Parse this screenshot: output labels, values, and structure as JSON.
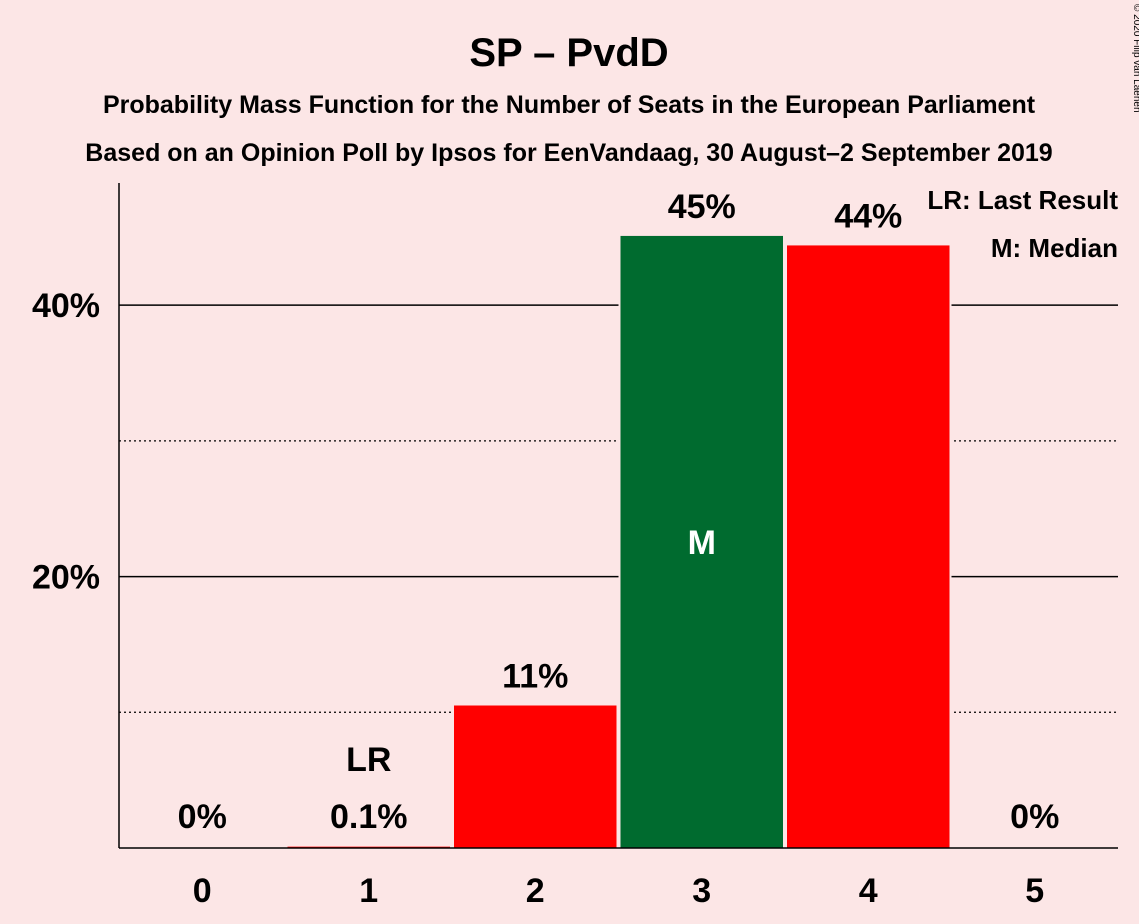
{
  "chart_data": {
    "type": "bar",
    "title": "SP – PvdD",
    "subtitle_lines": [
      "Probability Mass Function for the Number of Seats in the European Parliament",
      "Based on an Opinion Poll by Ipsos for EenVandaag, 30 August–2 September 2019"
    ],
    "categories": [
      "0",
      "1",
      "2",
      "3",
      "4",
      "5"
    ],
    "values": [
      0,
      0.1,
      10.5,
      45.1,
      44.4,
      0
    ],
    "data_labels": [
      "0%",
      "0.1%",
      "11%",
      "45%",
      "44%",
      "0%"
    ],
    "bar_colors": [
      "#ff0000",
      "#ff0000",
      "#ff0000",
      "#006b2f",
      "#ff0000",
      "#ff0000"
    ],
    "last_result_index": 1,
    "last_result_marker": "LR",
    "median_index": 3,
    "median_marker": "M",
    "ylim": [
      0,
      49
    ],
    "yticks": [
      20,
      40
    ],
    "ytick_labels": [
      "20%",
      "40%"
    ],
    "minor_gridlines": [
      10,
      30
    ],
    "grid": true,
    "legend_position": "top-right",
    "legend": [
      "LR: Last Result",
      "M: Median"
    ],
    "copyright": "© 2020 Filip van Laenen"
  }
}
